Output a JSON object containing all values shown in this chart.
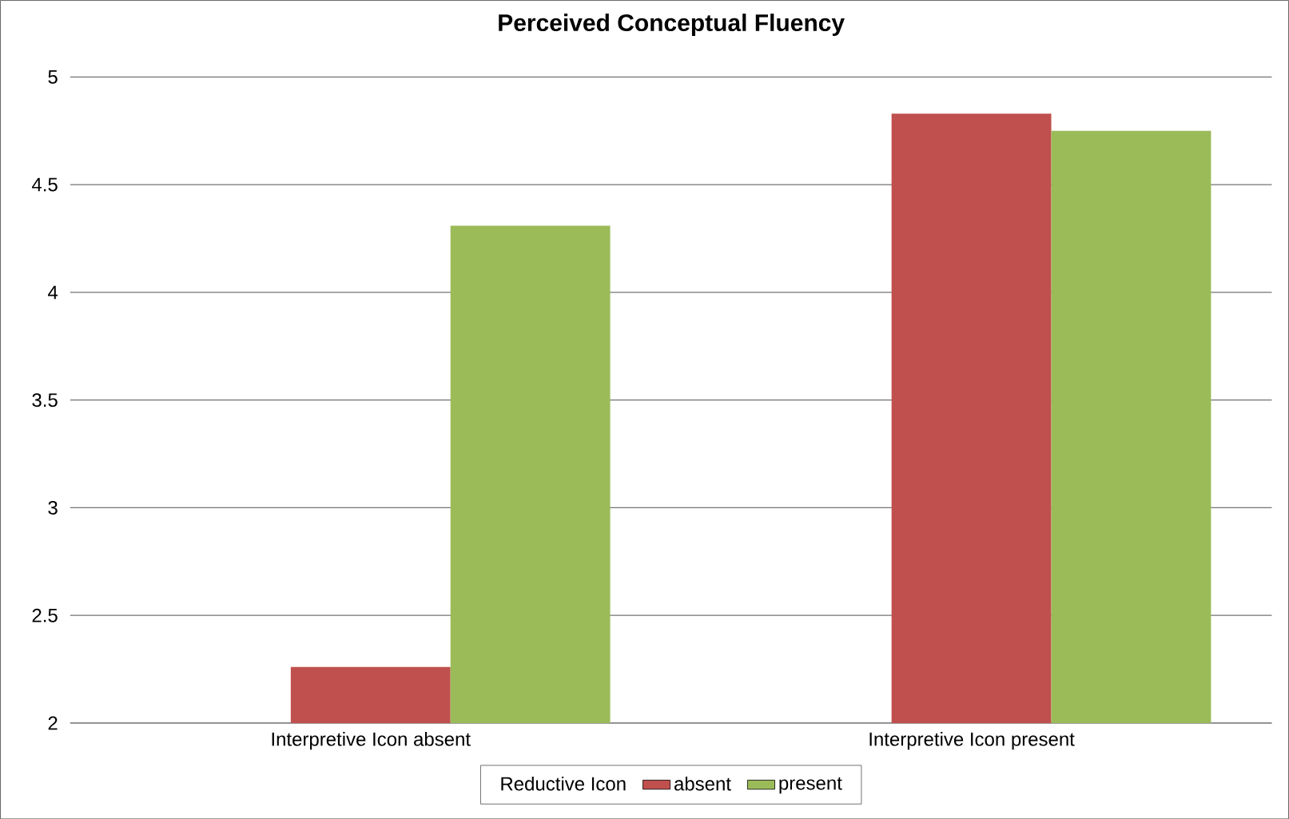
{
  "chart_data": {
    "type": "bar",
    "title": "Perceived Conceptual Fluency",
    "legend_title": "Reductive Icon",
    "categories": [
      "Interpretive Icon absent",
      "Interpretive Icon present"
    ],
    "series": [
      {
        "name": "absent",
        "color": "#c0504d",
        "values": [
          2.26,
          4.83
        ]
      },
      {
        "name": "present",
        "color": "#9bbb59",
        "values": [
          4.31,
          4.75
        ]
      }
    ],
    "ylim": [
      2,
      5
    ],
    "yticks": [
      2,
      2.5,
      3,
      3.5,
      4,
      4.5,
      5
    ],
    "grid": "y",
    "legend": "bottom"
  }
}
